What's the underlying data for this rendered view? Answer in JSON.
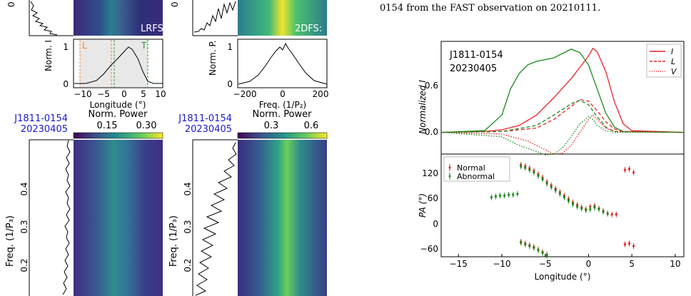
{
  "caption": "0154 from the FAST observation on 20210111.",
  "left_figure": {
    "lrfs_label": "LRFS",
    "dfs_label": "2DFS:",
    "profile_ylabel": "Norm. I",
    "profile_xlabel": "Longitude (°)",
    "profile_xticks": [
      "−10",
      "−5",
      "0",
      "5",
      "10"
    ],
    "profile_yticks": [
      "0",
      "1"
    ],
    "window_labels": {
      "leading": "L",
      "trailing": "T"
    },
    "p2_ylabel": "Norm. P.",
    "p2_xlabel": "Freq. (1/P₂)",
    "p2_xticks": [
      "−200",
      "0",
      "200"
    ],
    "p2_yticks": [
      "0",
      "1"
    ],
    "pulsar": "J1811-0154",
    "date": "20230405",
    "colorbar1": {
      "label": "Norm. Power",
      "ticks": [
        "0.15",
        "0.30"
      ]
    },
    "colorbar2": {
      "label": "Norm. Power",
      "ticks": [
        "0.3",
        "0.6"
      ]
    },
    "p3_ylabel": "Freq. (1/P₃)",
    "p3_yticks": [
      "0.4",
      "0.3",
      "0.2"
    ],
    "p3_yticks_right": [
      "0.4",
      "0.3",
      "0.2"
    ],
    "p3_ylabel_right": "Freq. (1/P₃)"
  },
  "right_figure": {
    "pulsar": "J1811-0154",
    "date": "20230405",
    "top_ylabel": "Normalized I",
    "top_yticks": [
      "0.0",
      "0.6"
    ],
    "legend": [
      "I",
      "L",
      "V"
    ],
    "bottom_ylabel": "PA (°)",
    "bottom_yticks": [
      "120",
      "60",
      "0",
      "−60"
    ],
    "bottom_legend": [
      "Normal",
      "Abnormal"
    ],
    "xlabel": "Longitude (°)",
    "xticks": [
      "−15",
      "−10",
      "−5",
      "0",
      "5",
      "10"
    ],
    "colors": {
      "normal": "#e8232a",
      "abnormal": "#1a8a1a"
    }
  },
  "chart_data": [
    {
      "type": "line",
      "title": "",
      "xlabel": "Longitude (°)",
      "ylabel": "Normalized I",
      "xlim": [
        -17,
        11
      ],
      "ylim": [
        -0.25,
        1.05
      ],
      "series": [
        {
          "name": "I",
          "mode": "Normal",
          "x": [
            -17,
            -12,
            -10,
            -8,
            -6,
            -4,
            -2,
            -1,
            0,
            0.5,
            1,
            2,
            3,
            4,
            5,
            11
          ],
          "y": [
            0.0,
            0.01,
            0.03,
            0.08,
            0.2,
            0.4,
            0.62,
            0.75,
            0.88,
            0.97,
            0.93,
            0.7,
            0.35,
            0.1,
            0.02,
            0.0
          ]
        },
        {
          "name": "I",
          "mode": "Abnormal",
          "x": [
            -17,
            -12,
            -10,
            -9,
            -8,
            -7,
            -6,
            -4,
            -2,
            -1,
            0,
            1,
            2,
            3,
            4,
            11
          ],
          "y": [
            0.0,
            0.02,
            0.2,
            0.5,
            0.68,
            0.78,
            0.82,
            0.86,
            0.96,
            0.92,
            0.78,
            0.5,
            0.22,
            0.06,
            0.01,
            0.0
          ]
        },
        {
          "name": "L",
          "mode": "Normal",
          "x": [
            -17,
            -10,
            -6,
            -4,
            -2,
            -1,
            0,
            1,
            2,
            3,
            4,
            11
          ],
          "y": [
            0.0,
            0.01,
            0.05,
            0.15,
            0.3,
            0.38,
            0.36,
            0.25,
            0.12,
            0.04,
            0.01,
            0.0
          ]
        },
        {
          "name": "L",
          "mode": "Abnormal",
          "x": [
            -17,
            -10,
            -6,
            -4,
            -2,
            -1,
            0,
            1,
            2,
            3,
            11
          ],
          "y": [
            0.0,
            0.01,
            0.08,
            0.2,
            0.33,
            0.37,
            0.32,
            0.18,
            0.06,
            0.01,
            0.0
          ]
        },
        {
          "name": "V",
          "mode": "Normal",
          "x": [
            -17,
            -10,
            -7,
            -5,
            -4,
            -3,
            -2,
            -1,
            0,
            0.5,
            1,
            2,
            3,
            11
          ],
          "y": [
            0.0,
            -0.02,
            -0.1,
            -0.2,
            -0.25,
            -0.24,
            -0.15,
            0.0,
            0.15,
            0.2,
            0.15,
            0.05,
            0.01,
            0.0
          ]
        },
        {
          "name": "V",
          "mode": "Abnormal",
          "x": [
            -17,
            -10,
            -8,
            -6,
            -5,
            -4,
            -3,
            -2,
            -1,
            0,
            0.5,
            1,
            2,
            3,
            11
          ],
          "y": [
            0.0,
            -0.05,
            -0.15,
            -0.22,
            -0.26,
            -0.25,
            -0.18,
            -0.05,
            0.1,
            0.18,
            0.15,
            0.08,
            0.02,
            0.0,
            0.0
          ]
        }
      ]
    },
    {
      "type": "scatter",
      "title": "",
      "xlabel": "Longitude (°)",
      "ylabel": "PA (°)",
      "xlim": [
        -17,
        11
      ],
      "ylim": [
        -75,
        165
      ],
      "series": [
        {
          "name": "Normal",
          "x": [
            -7.8,
            -7.3,
            -6.8,
            -6.3,
            -5.8,
            -5.3,
            -4.8,
            -4.3,
            -3.8,
            -3.3,
            -2.8,
            -2.3,
            -1.8,
            -1.3,
            -0.8,
            -0.3,
            0.2,
            0.7,
            1.2,
            1.7,
            2.2,
            2.7,
            3.2,
            4.2,
            4.7,
            5.2,
            -7.8,
            -7.3,
            -6.8,
            -6.3,
            -5.8,
            -5.3,
            -4.8,
            4.2,
            4.7,
            5.2
          ],
          "y": [
            140,
            137,
            132,
            126,
            118,
            110,
            100,
            92,
            84,
            76,
            68,
            60,
            52,
            46,
            40,
            36,
            42,
            44,
            38,
            32,
            26,
            24,
            24,
            128,
            130,
            122,
            -40,
            -44,
            -48,
            -52,
            -58,
            -64,
            -70,
            -46,
            -44,
            -50
          ]
        },
        {
          "name": "Abnormal",
          "x": [
            -11.2,
            -10.7,
            -10.2,
            -9.7,
            -9.2,
            -8.7,
            -8.2,
            -7.8,
            -7.3,
            -6.8,
            -6.3,
            -5.8,
            -5.3,
            -4.8,
            -4.3,
            -3.8,
            -3.3,
            -2.8,
            -2.3,
            -1.8,
            -1.3,
            -0.8,
            -0.3,
            0.2,
            0.7,
            1.2,
            1.7,
            2.2,
            -7.8,
            -7.3,
            -6.8,
            -6.3,
            -5.8,
            -5.3,
            -4.8
          ],
          "y": [
            64,
            66,
            68,
            68,
            70,
            70,
            72,
            136,
            133,
            128,
            122,
            114,
            106,
            96,
            88,
            80,
            72,
            64,
            56,
            48,
            42,
            38,
            34,
            36,
            40,
            36,
            30,
            26,
            -42,
            -46,
            -50,
            -54,
            -60,
            -66,
            -72
          ]
        }
      ]
    }
  ]
}
